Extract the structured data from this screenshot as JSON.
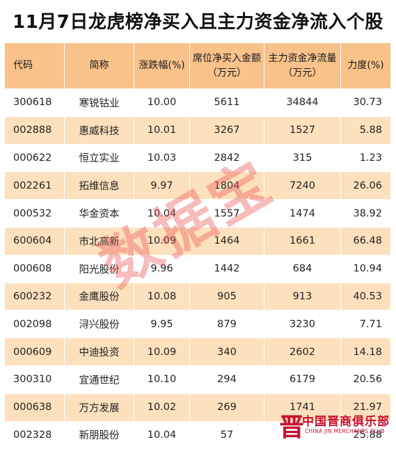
{
  "title": "11月7日龙虎榜净买入且主力资金净流入个股",
  "table": {
    "headers": [
      "代码",
      "简称",
      "涨跌幅(%)",
      "席位净买入金额（万元）",
      "主力资金净流量（万元）",
      "力度(%)"
    ],
    "rows": [
      [
        "300618",
        "寒锐钴业",
        "10.00",
        "5611",
        "34844",
        "30.73"
      ],
      [
        "002888",
        "惠威科技",
        "10.01",
        "3267",
        "1527",
        "5.88"
      ],
      [
        "000622",
        "恒立实业",
        "10.03",
        "2842",
        "315",
        "1.23"
      ],
      [
        "002261",
        "拓维信息",
        "9.97",
        "1804",
        "7240",
        "26.06"
      ],
      [
        "000532",
        "华金资本",
        "10.04",
        "1557",
        "1474",
        "38.92"
      ],
      [
        "600604",
        "市北高新",
        "10.09",
        "1464",
        "1661",
        "66.48"
      ],
      [
        "000608",
        "阳光股份",
        "9.96",
        "1442",
        "684",
        "10.94"
      ],
      [
        "600232",
        "金鹰股份",
        "10.08",
        "905",
        "913",
        "40.53"
      ],
      [
        "002098",
        "浔兴股份",
        "9.95",
        "879",
        "3230",
        "7.71"
      ],
      [
        "000609",
        "中迪投资",
        "10.09",
        "340",
        "2602",
        "14.18"
      ],
      [
        "300310",
        "宜通世纪",
        "10.10",
        "294",
        "6179",
        "20.56"
      ],
      [
        "000638",
        "万方发展",
        "10.02",
        "269",
        "1741",
        "21.97"
      ],
      [
        "002328",
        "新朋股份",
        "10.04",
        "57",
        "",
        "25.88"
      ]
    ]
  },
  "watermark": "数据宝",
  "club_logo": {
    "mark": "晋",
    "name": "中国晋商俱乐部",
    "english": "CHINA JIN MERCHANTS CLUB"
  },
  "colors": {
    "header_bg": "#f8c28a",
    "stripe_bg": "#fde0bd",
    "watermark": "#ec5f5f",
    "logo": "#c8102e"
  }
}
